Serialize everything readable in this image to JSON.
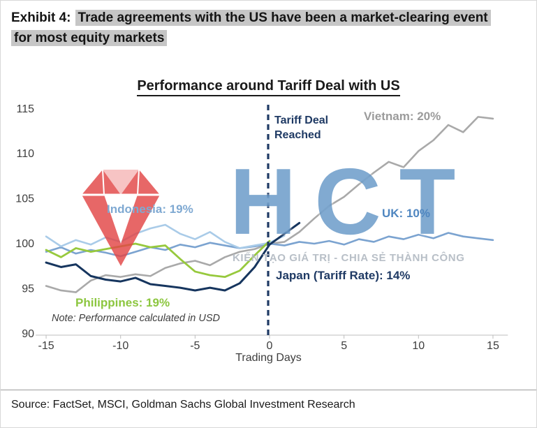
{
  "exhibit": {
    "prefix": "Exhibit 4:",
    "title_line1": "Trade agreements with the US have been a market-clearing event",
    "title_line2": "for most equity markets"
  },
  "source": "Source: FactSet, MSCI, Goldman Sachs Global Investment Research",
  "watermark": {
    "text": "HCT",
    "subtext": "KIẾN TẠO GIÁ TRỊ - CHIA SẺ THÀNH CÔNG",
    "text_color": "#2d72b2",
    "gem_color": "#e24646"
  },
  "chart_data": {
    "type": "line",
    "title": "Performance around Tariff Deal with US",
    "xlabel": "Trading Days",
    "ylabel": "",
    "xlim": [
      -15,
      15
    ],
    "ylim": [
      90,
      115
    ],
    "xticks": [
      -15,
      -10,
      -5,
      0,
      5,
      10,
      15
    ],
    "yticks": [
      90,
      95,
      100,
      105,
      110,
      115
    ],
    "grid": false,
    "legend_position": "inline-labels",
    "event_line_x": 0,
    "event_line_color": "#1f3a64",
    "event_label_lines": [
      "Tariff Deal",
      "Reached"
    ],
    "note": "Note: Performance calculated in USD",
    "series": [
      {
        "name": "Vietnam: 20%",
        "color": "#a9a9a9",
        "width": 2.6,
        "x": [
          -15,
          -14,
          -13,
          -12,
          -11,
          -10,
          -9,
          -8,
          -7,
          -6,
          -5,
          -4,
          -3,
          -2,
          -1,
          0,
          1,
          2,
          3,
          4,
          5,
          6,
          7,
          8,
          9,
          10,
          11,
          12,
          13,
          14,
          15
        ],
        "values": [
          95.3,
          94.8,
          94.6,
          95.9,
          96.5,
          96.3,
          96.6,
          96.4,
          97.3,
          97.8,
          98.1,
          97.6,
          98.5,
          99.1,
          99.4,
          100.0,
          100.2,
          101.3,
          102.8,
          104.2,
          105.2,
          106.6,
          107.9,
          109.1,
          108.5,
          110.3,
          111.5,
          113.2,
          112.4,
          114.1,
          113.9
        ]
      },
      {
        "name": "UK: 10%",
        "color": "#7ba3d0",
        "width": 2.6,
        "x": [
          -15,
          -14,
          -13,
          -12,
          -11,
          -10,
          -9,
          -8,
          -7,
          -6,
          -5,
          -4,
          -3,
          -2,
          -1,
          0,
          1,
          2,
          3,
          4,
          5,
          6,
          7,
          8,
          9,
          10,
          11,
          12,
          13,
          14,
          15
        ],
        "values": [
          99.1,
          99.6,
          98.9,
          99.3,
          99.0,
          98.6,
          99.1,
          99.6,
          99.3,
          99.9,
          99.6,
          100.1,
          99.8,
          99.5,
          99.7,
          100.0,
          99.8,
          100.2,
          100.0,
          100.3,
          99.9,
          100.5,
          100.2,
          100.8,
          100.5,
          101.0,
          100.6,
          101.2,
          100.8,
          100.6,
          100.4
        ]
      },
      {
        "name": "Indonesia: 19%",
        "color": "#a9cbe8",
        "width": 2.6,
        "x": [
          -15,
          -14,
          -13,
          -12,
          -11,
          -10,
          -9,
          -8,
          -7,
          -6,
          -5,
          -4,
          -3,
          -2,
          -1,
          0,
          1
        ],
        "values": [
          100.8,
          99.7,
          100.4,
          99.9,
          100.7,
          100.2,
          101.1,
          101.7,
          102.1,
          101.1,
          100.5,
          101.3,
          100.2,
          99.5,
          99.8,
          100.1,
          100.9
        ]
      },
      {
        "name": "Philippines: 19%",
        "color": "#97c93d",
        "width": 2.8,
        "x": [
          -15,
          -14,
          -13,
          -12,
          -11,
          -10,
          -9,
          -8,
          -7,
          -6,
          -5,
          -4,
          -3,
          -2,
          -1,
          0
        ],
        "values": [
          99.3,
          98.5,
          99.5,
          99.1,
          99.4,
          99.7,
          100.0,
          99.6,
          99.8,
          98.3,
          96.9,
          96.5,
          96.3,
          97.0,
          98.7,
          100.3
        ]
      },
      {
        "name": "Japan (Tariff Rate): 14%",
        "color": "#16355e",
        "width": 3.0,
        "x": [
          -15,
          -14,
          -13,
          -12,
          -11,
          -10,
          -9,
          -8,
          -7,
          -6,
          -5,
          -4,
          -3,
          -2,
          -1,
          0,
          1,
          2
        ],
        "values": [
          97.9,
          97.4,
          97.7,
          96.4,
          96.0,
          95.8,
          96.2,
          95.5,
          95.3,
          95.1,
          94.8,
          95.1,
          94.8,
          95.6,
          97.4,
          99.9,
          101.1,
          102.3
        ]
      }
    ]
  }
}
